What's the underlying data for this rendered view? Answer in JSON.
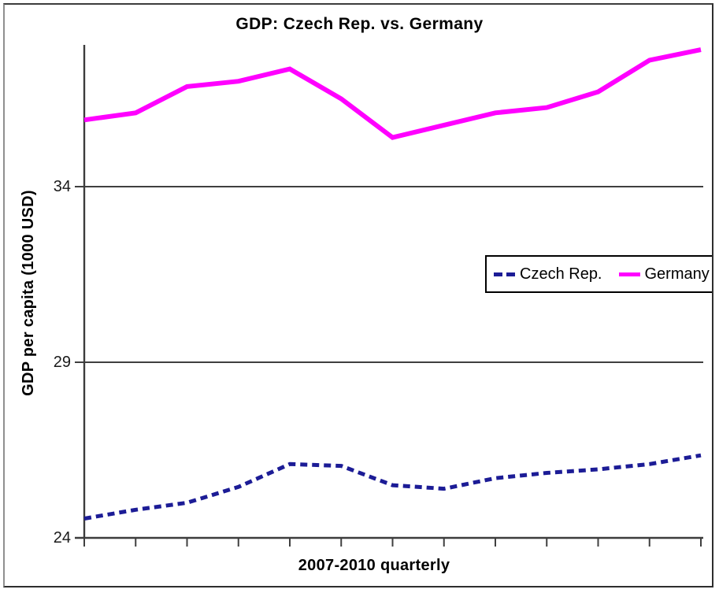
{
  "chart_data": {
    "type": "line",
    "title": "GDP: Czech Rep. vs. Germany",
    "xlabel": "2007-2010 quarterly",
    "ylabel": "GDP per capita (1000 USD)",
    "ylim": [
      24,
      38.05
    ],
    "yticks": [
      34,
      29,
      24
    ],
    "ytick_labels": [
      "34",
      "29",
      "24"
    ],
    "gridline_values": [
      34,
      29
    ],
    "x_tick_count": 13,
    "x_tick_labels_visible": false,
    "grid": "horizontal",
    "legend_position": "center-right",
    "series": [
      {
        "name": "Czech Rep.",
        "color": "#1c1c96",
        "line_style": "dashed",
        "values": [
          24.55,
          24.8,
          25.0,
          25.45,
          26.1,
          26.05,
          25.5,
          25.4,
          25.7,
          25.85,
          25.95,
          26.1,
          26.35
        ]
      },
      {
        "name": "Germany",
        "color": "#ff00ff",
        "line_style": "solid",
        "values": [
          35.9,
          36.1,
          36.85,
          37.0,
          37.35,
          36.5,
          35.4,
          35.75,
          36.1,
          36.25,
          36.7,
          37.6,
          37.9
        ]
      }
    ]
  }
}
